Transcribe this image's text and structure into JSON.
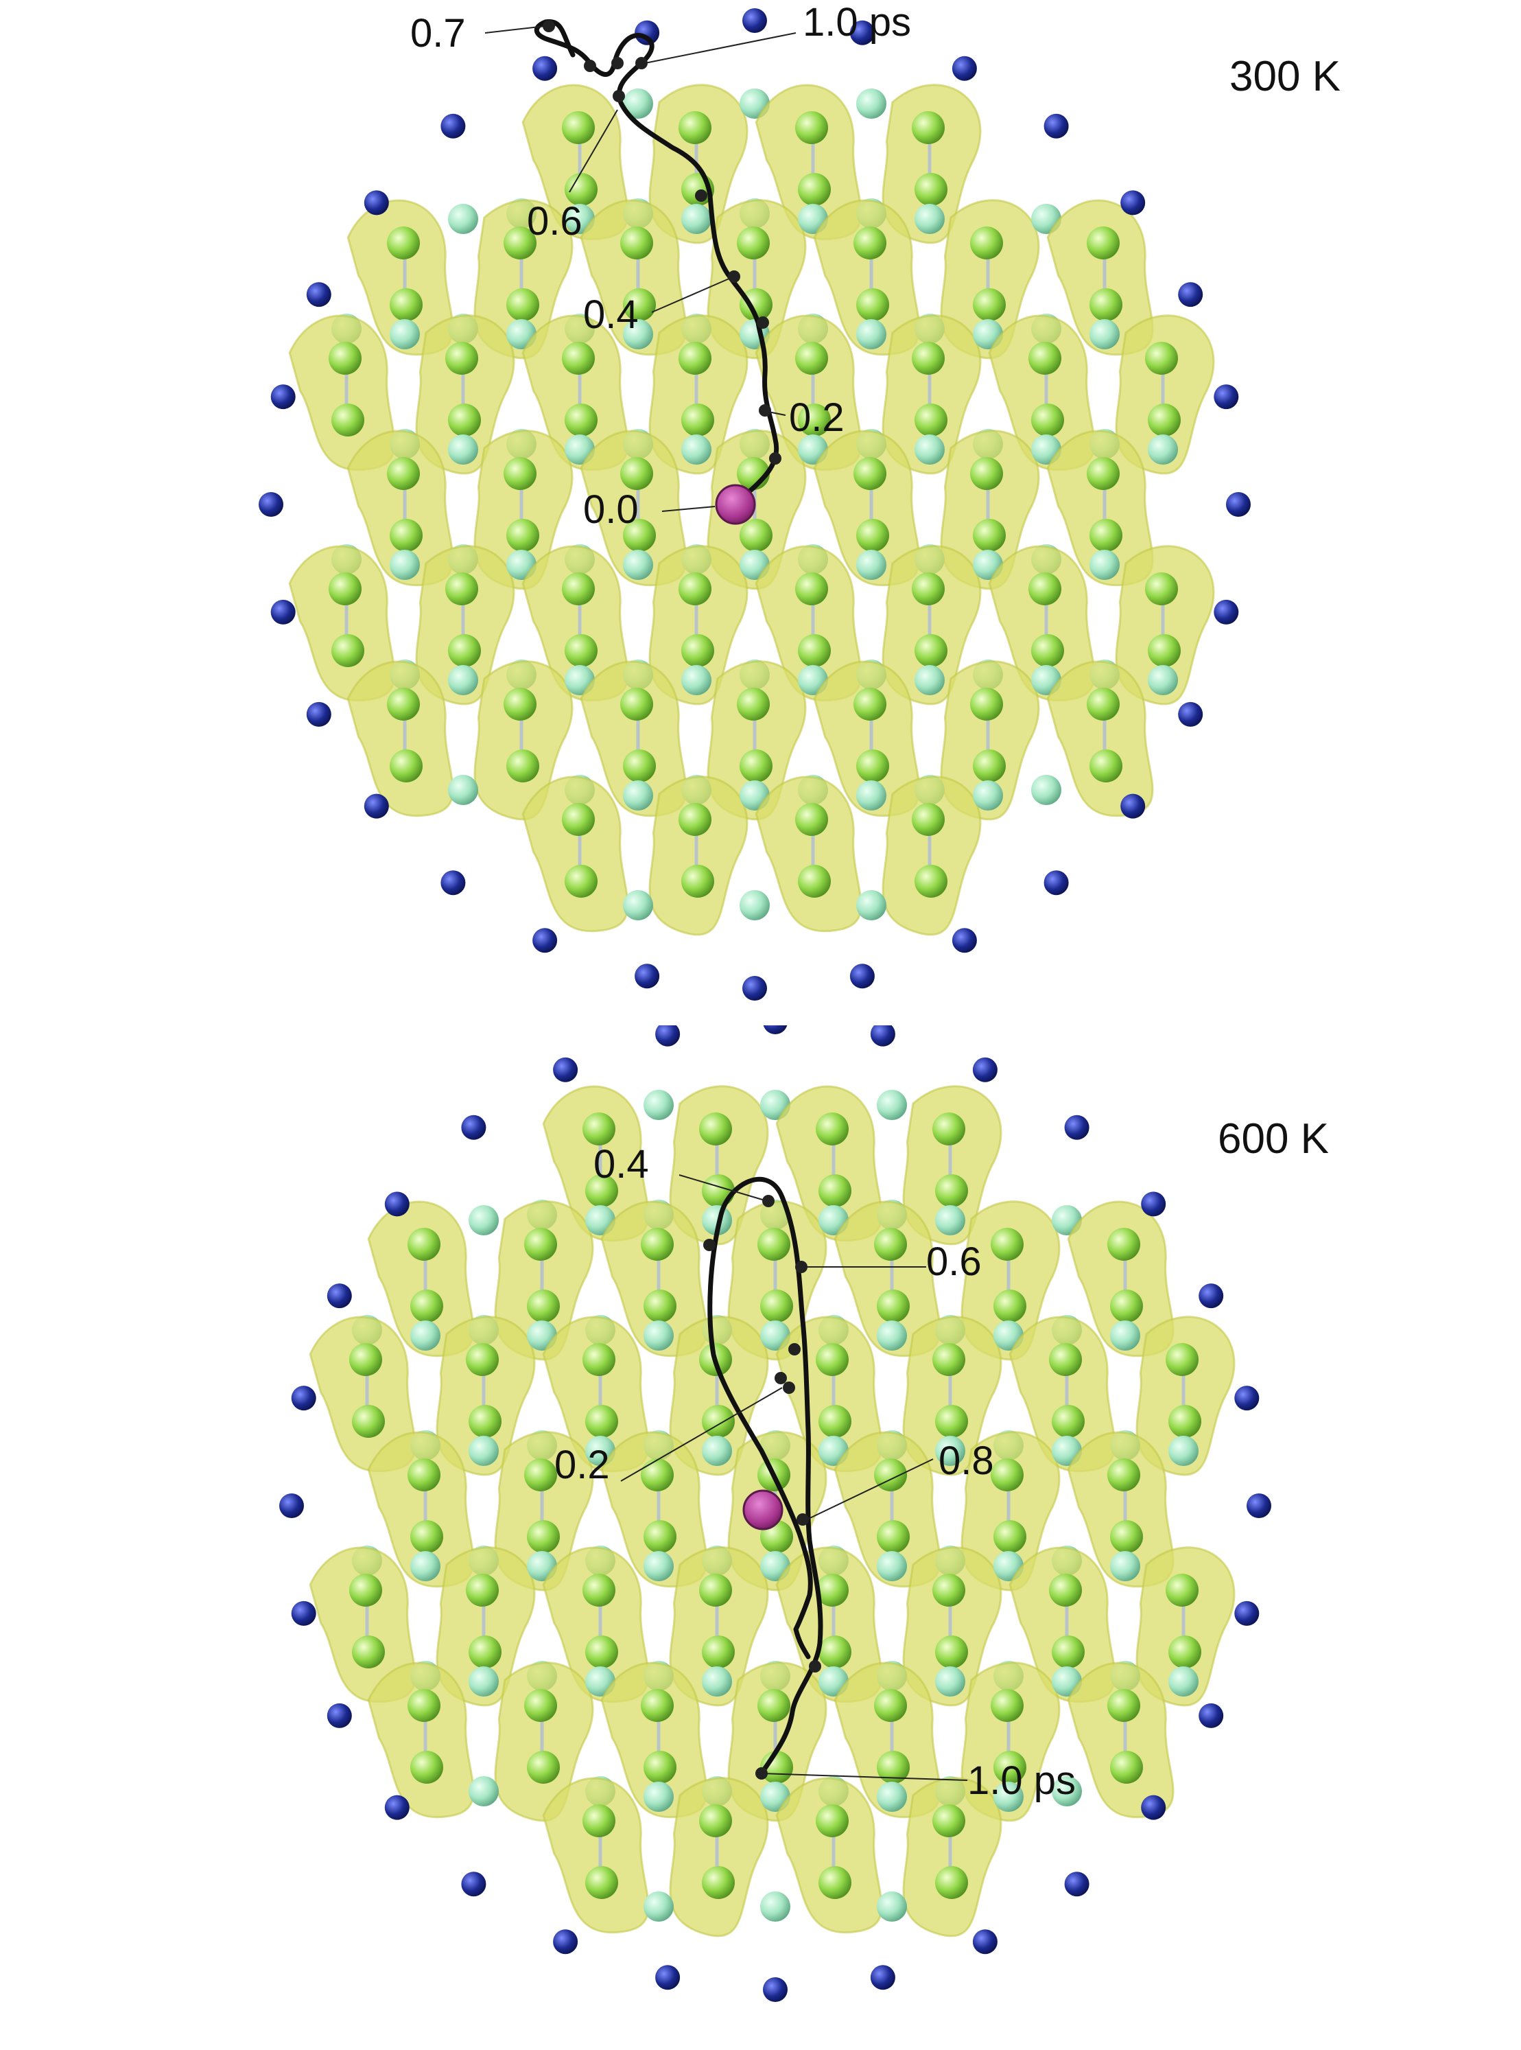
{
  "panels": [
    {
      "temperature": "300 K",
      "time_labels": [
        "0.0",
        "0.2",
        "0.4",
        "0.6",
        "0.7",
        "1.0 ps"
      ]
    },
    {
      "temperature": "600 K",
      "time_labels": [
        "0.2",
        "0.4",
        "0.6",
        "0.8",
        "1.0 ps"
      ]
    }
  ],
  "colors": {
    "lobe": "#d9dd6a",
    "lobe_edge": "#c3c84a",
    "carbon_light": "#9fe3bf",
    "carbon_green": "#8ed64a",
    "hydrogen": "#1a2a8c",
    "start_marker": "#b0389c",
    "trajectory": "#111111"
  }
}
